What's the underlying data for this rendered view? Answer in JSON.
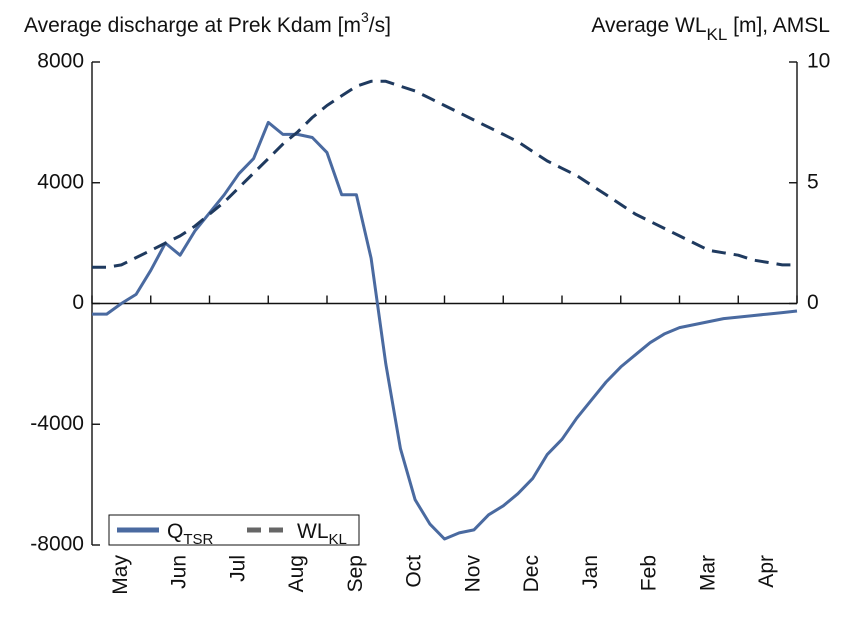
{
  "chart_data": {
    "type": "line",
    "y_label": {
      "text": "Average discharge at Prek Kdam [m",
      "sup": "3",
      "tail": "/s]"
    },
    "y2_label": {
      "text": "Average WL",
      "sub": "KL",
      "tail": " [m], AMSL"
    },
    "x": [
      0,
      0.25,
      0.5,
      0.75,
      1,
      1.25,
      1.5,
      1.75,
      2,
      2.25,
      2.5,
      2.75,
      3,
      3.25,
      3.5,
      3.75,
      4,
      4.25,
      4.5,
      4.75,
      5,
      5.25,
      5.5,
      5.75,
      6,
      6.25,
      6.5,
      6.75,
      7,
      7.25,
      7.5,
      7.75,
      8,
      8.25,
      8.5,
      8.75,
      9,
      9.25,
      9.5,
      9.75,
      10,
      10.25,
      10.5,
      10.75,
      11,
      11.25,
      11.5,
      11.75,
      12
    ],
    "xlim": [
      0,
      12
    ],
    "xminor": [
      0,
      1,
      2,
      3,
      4,
      5,
      6,
      7,
      8,
      9,
      10,
      11,
      12
    ],
    "xticks": [
      {
        "value": 0.5,
        "label": "May"
      },
      {
        "value": 1.5,
        "label": "Jun"
      },
      {
        "value": 2.5,
        "label": "Jul"
      },
      {
        "value": 3.5,
        "label": "Aug"
      },
      {
        "value": 4.5,
        "label": "Sep"
      },
      {
        "value": 5.5,
        "label": "Oct"
      },
      {
        "value": 6.5,
        "label": "Nov"
      },
      {
        "value": 7.5,
        "label": "Dec"
      },
      {
        "value": 8.5,
        "label": "Jan"
      },
      {
        "value": 9.5,
        "label": "Feb"
      },
      {
        "value": 10.5,
        "label": "Mar"
      },
      {
        "value": 11.5,
        "label": "Apr"
      }
    ],
    "ylim": [
      -8000,
      8000
    ],
    "yticks": [
      -8000,
      -4000,
      0,
      4000,
      8000
    ],
    "y2lim": [
      -10,
      10
    ],
    "y2ticks": [
      0,
      5,
      10
    ],
    "legend": "lower left",
    "series": [
      {
        "name": "Q",
        "subscript": "TSR",
        "color": "#4a6aa0",
        "dash": false,
        "values": [
          -350,
          -350,
          0,
          300,
          1100,
          2000,
          1600,
          2400,
          3000,
          3600,
          4300,
          4800,
          6000,
          5600,
          5600,
          5500,
          5000,
          3600,
          3600,
          1500,
          -2000,
          -4800,
          -6500,
          -7300,
          -7800,
          -7600,
          -7500,
          -7000,
          -6700,
          -6300,
          -5800,
          -5000,
          -4500,
          -3800,
          -3200,
          -2600,
          -2100,
          -1700,
          -1300,
          -1000,
          -800,
          -700,
          -600,
          -500,
          -450,
          -400,
          -350,
          -300,
          -250
        ]
      },
      {
        "name": "WL",
        "subscript": "KL",
        "color": "#1f3a5f",
        "dash": true,
        "axis": "y2",
        "values": [
          1.5,
          1.5,
          1.6,
          1.9,
          2.2,
          2.5,
          2.8,
          3.2,
          3.7,
          4.2,
          4.8,
          5.4,
          6.0,
          6.6,
          7.1,
          7.7,
          8.2,
          8.6,
          9.0,
          9.2,
          9.2,
          9.0,
          8.8,
          8.5,
          8.2,
          7.9,
          7.6,
          7.3,
          7.0,
          6.7,
          6.3,
          5.9,
          5.6,
          5.3,
          4.9,
          4.5,
          4.1,
          3.7,
          3.4,
          3.1,
          2.8,
          2.5,
          2.2,
          2.1,
          2.0,
          1.8,
          1.7,
          1.6,
          1.6
        ]
      }
    ]
  }
}
